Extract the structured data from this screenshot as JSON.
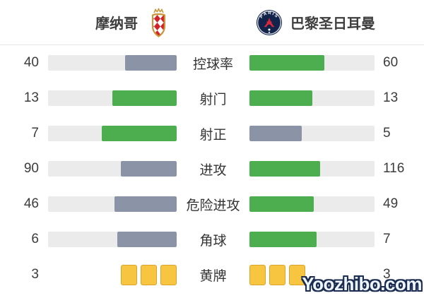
{
  "header": {
    "home_team": "摩纳哥",
    "away_team": "巴黎圣日耳曼",
    "psg_logo_text": "PARIS"
  },
  "colors": {
    "win": "#4cae4f",
    "lose": "#8b94a6",
    "track": "#ebebeb",
    "card_yellow": "#f7c53f",
    "card_border": "#dba32a"
  },
  "stats": {
    "rows": [
      {
        "label": "控球率",
        "home": 40,
        "away": 60
      },
      {
        "label": "射门",
        "home": 13,
        "away": 13
      },
      {
        "label": "射正",
        "home": 7,
        "away": 5
      },
      {
        "label": "进攻",
        "home": 90,
        "away": 116
      },
      {
        "label": "危险进攻",
        "home": 46,
        "away": 49
      },
      {
        "label": "角球",
        "home": 6,
        "away": 7
      }
    ],
    "cards": {
      "label": "黄牌",
      "home": 3,
      "away": 3
    }
  },
  "chart_data": {
    "type": "bar",
    "title": "摩纳哥 vs 巴黎圣日耳曼",
    "categories": [
      "控球率",
      "射门",
      "射正",
      "进攻",
      "危险进攻",
      "角球",
      "黄牌"
    ],
    "series": [
      {
        "name": "摩纳哥",
        "values": [
          40,
          13,
          7,
          90,
          46,
          6,
          3
        ]
      },
      {
        "name": "巴黎圣日耳曼",
        "values": [
          60,
          13,
          5,
          116,
          49,
          7,
          3
        ]
      }
    ],
    "layout": "mirrored horizontal comparison bars, labels centered, winner green / loser gray"
  },
  "watermark": "Yoozhibo.com"
}
